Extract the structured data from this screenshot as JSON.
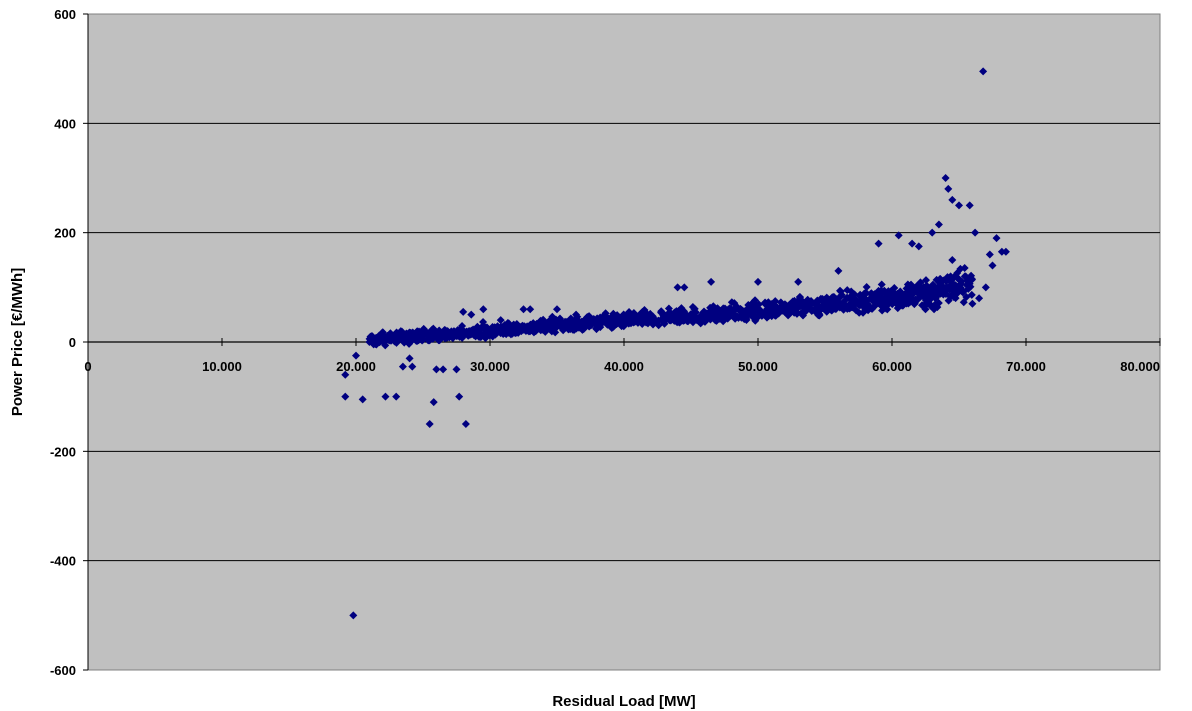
{
  "chart_data": {
    "type": "scatter",
    "title": "",
    "xlabel": "Residual Load [MW]",
    "ylabel": "Power Price [€/MWh]",
    "xlim": [
      0,
      80000
    ],
    "ylim": [
      -600,
      600
    ],
    "x_ticks": [
      0,
      10000,
      20000,
      30000,
      40000,
      50000,
      60000,
      70000,
      80000
    ],
    "x_tick_labels": [
      "0",
      "10.000",
      "20.000",
      "30.000",
      "40.000",
      "50.000",
      "60.000",
      "70.000",
      "80.000"
    ],
    "y_ticks": [
      -600,
      -400,
      -200,
      0,
      200,
      400,
      600
    ],
    "y_tick_labels": [
      "-600",
      "-400",
      "-200",
      "0",
      "200",
      "400",
      "600"
    ],
    "grid": "horizontal",
    "legend": "none",
    "colors": {
      "plot_background": "#c0c0c0",
      "marker": "#000080",
      "gridline": "#000000"
    },
    "series": [
      {
        "marker": "diamond",
        "points": [
          [
            19200,
            -60
          ],
          [
            19200,
            -100
          ],
          [
            19800,
            -500
          ],
          [
            20000,
            -25
          ],
          [
            20500,
            -105
          ],
          [
            22200,
            -100
          ],
          [
            23000,
            -100
          ],
          [
            23500,
            -45
          ],
          [
            24000,
            -30
          ],
          [
            24200,
            -45
          ],
          [
            25500,
            -150
          ],
          [
            25800,
            -110
          ],
          [
            26000,
            -50
          ],
          [
            26500,
            -50
          ],
          [
            27500,
            -50
          ],
          [
            27700,
            -100
          ],
          [
            28200,
            -150
          ],
          [
            28000,
            55
          ],
          [
            28600,
            50
          ],
          [
            29500,
            60
          ],
          [
            30200,
            10
          ],
          [
            30800,
            40
          ],
          [
            32500,
            60
          ],
          [
            33000,
            60
          ],
          [
            35000,
            60
          ],
          [
            44000,
            100
          ],
          [
            44500,
            100
          ],
          [
            46500,
            110
          ],
          [
            50000,
            110
          ],
          [
            53000,
            110
          ],
          [
            56000,
            130
          ],
          [
            59000,
            180
          ],
          [
            60500,
            195
          ],
          [
            61500,
            180
          ],
          [
            62000,
            175
          ],
          [
            63000,
            200
          ],
          [
            63500,
            215
          ],
          [
            64000,
            300
          ],
          [
            64200,
            280
          ],
          [
            64500,
            260
          ],
          [
            65000,
            250
          ],
          [
            65800,
            250
          ],
          [
            66200,
            200
          ],
          [
            66800,
            495
          ],
          [
            67300,
            160
          ],
          [
            67800,
            190
          ],
          [
            68200,
            165
          ],
          [
            68500,
            165
          ],
          [
            66500,
            80
          ],
          [
            66000,
            70
          ],
          [
            64500,
            150
          ],
          [
            65500,
            120
          ],
          [
            67000,
            100
          ],
          [
            67500,
            140
          ],
          [
            62500,
            60
          ],
          [
            21000,
            0
          ],
          [
            22000,
            5
          ],
          [
            23000,
            10
          ],
          [
            24000,
            15
          ],
          [
            25000,
            20
          ]
        ]
      }
    ],
    "cloud_band": {
      "x": [
        21000,
        25000,
        30000,
        35000,
        40000,
        45000,
        50000,
        55000,
        60000,
        63000,
        66000
      ],
      "y_low": [
        -10,
        -5,
        5,
        15,
        25,
        30,
        35,
        40,
        50,
        55,
        60
      ],
      "y_high": [
        15,
        30,
        40,
        50,
        60,
        70,
        80,
        95,
        115,
        130,
        150
      ],
      "y_center": [
        5,
        10,
        20,
        30,
        40,
        45,
        55,
        65,
        80,
        90,
        100
      ]
    }
  }
}
